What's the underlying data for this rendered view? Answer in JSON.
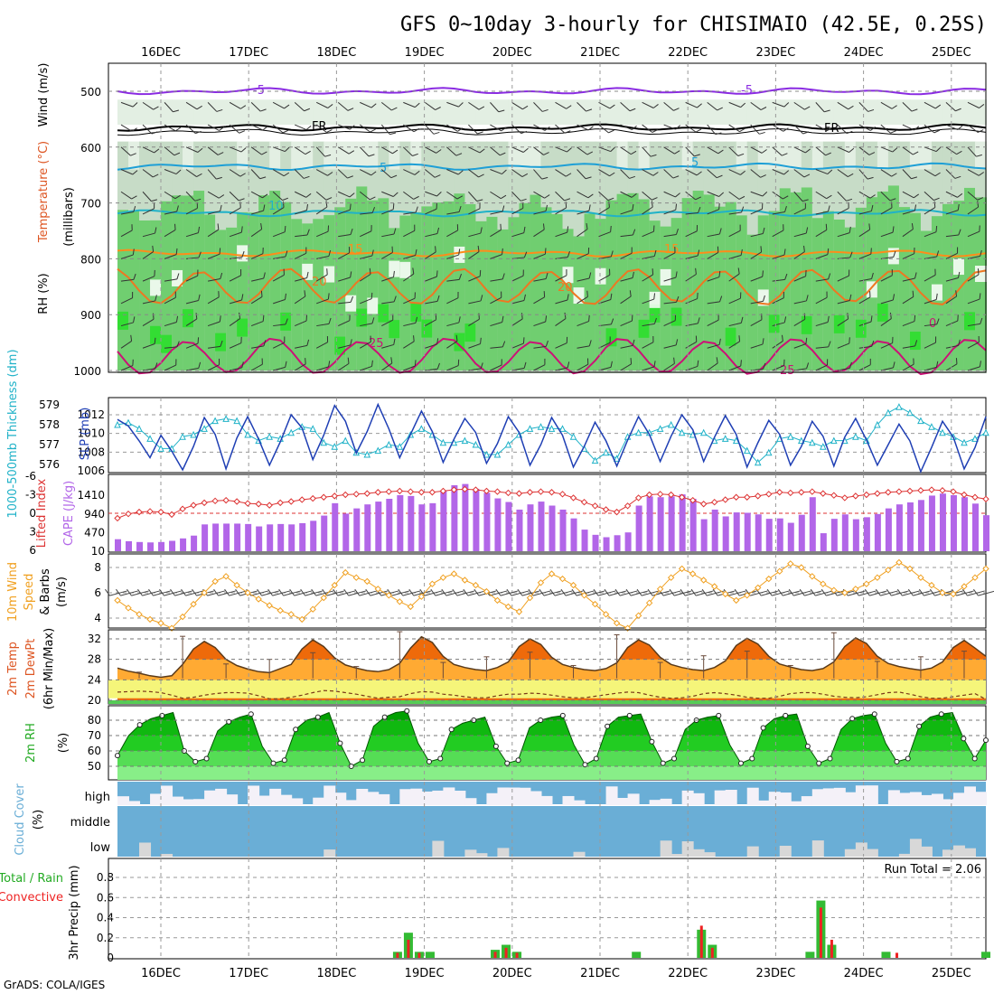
{
  "chart_data": {
    "type": "meteogram",
    "title": "GFS 0~10day 3-hourly for CHISIMAIO (42.5E, 0.25S)",
    "credit": "GrADS: COLA/IGES",
    "dates": [
      "16DEC",
      "17DEC",
      "18DEC",
      "19DEC",
      "20DEC",
      "21DEC",
      "22DEC",
      "23DEC",
      "24DEC",
      "25DEC"
    ],
    "colors": {
      "rh_light": "#e3efe3",
      "rh_mid": "#c7dcc7",
      "rh_green": "#66cc66",
      "rh_bright": "#33dd33",
      "purple": "#8a2be2",
      "fr": "#000000",
      "cyan": "#1e9fd6",
      "teal": "#20b2c8",
      "orange": "#ff8c1a",
      "orange_dark": "#ee7722",
      "magenta": "#cc1177",
      "blue": "#1f3fb4",
      "cape": "#b266e8",
      "li": "#dd3333",
      "wind_orange": "#f0a020",
      "temp_dark": "#ee6a0a",
      "temp_mid": "#ffaa33",
      "dew": "#f5f57a",
      "green_grass": "#55cc55",
      "cloud_blue": "#6aaed6",
      "cloud_white": "#f4f1f8",
      "cloud_gray": "#d8d8d8",
      "bar_green": "#33bb33",
      "bar_red": "#ee2222"
    },
    "panels": [
      {
        "id": "upper_air",
        "ylabel": "(millibars)",
        "legend": [
          "RH (%)",
          "Temperature (°C)",
          "Wind (m/s)"
        ],
        "yticks": [
          "500",
          "600",
          "700",
          "800",
          "900",
          "1000"
        ],
        "isotherms": [
          {
            "label": "-5",
            "level_mb": 500,
            "color": "purple"
          },
          {
            "label": "FR",
            "level_mb": 565,
            "color": "fr"
          },
          {
            "label": "5",
            "level_mb": 635,
            "color": "cyan"
          },
          {
            "label": "10",
            "level_mb": 718,
            "color": "teal"
          },
          {
            "label": "15",
            "level_mb": 790,
            "color": "orange"
          },
          {
            "label": "20",
            "level_mb": 850,
            "color": "orange_dark"
          },
          {
            "label": "25",
            "level_mb": 975,
            "color": "magenta"
          }
        ],
        "contour_labels": [
          "-5",
          "-5",
          "FR",
          "FR",
          "5",
          "5",
          "10",
          "15",
          "15",
          "20",
          "20",
          "25",
          "25",
          "0"
        ]
      },
      {
        "id": "slp_thickness",
        "ylabel_left": "1000-500mb Thickness (dm)",
        "ylabel_right": "SLP (mb)",
        "thickness_ticks": [
          "579",
          "578",
          "577",
          "576"
        ],
        "slp_ticks": [
          "1012",
          "1010",
          "1008",
          "1006"
        ],
        "slp_mb": [
          1011.5,
          1010.8,
          1009.2,
          1007.4,
          1009.8,
          1008.1,
          1006.1,
          1008.6,
          1011.7,
          1009.9,
          1006.2,
          1009.5,
          1011.8,
          1009.4,
          1006.6,
          1009.1,
          1012.0,
          1010.6,
          1007.2,
          1009.8,
          1013.0,
          1011.3,
          1007.9,
          1010.2,
          1013.1,
          1010.5,
          1007.4,
          1009.9,
          1012.4,
          1010.2,
          1006.9,
          1009.4,
          1011.6,
          1010.1,
          1006.8,
          1008.9,
          1011.8,
          1010.1,
          1006.6,
          1008.8,
          1011.7,
          1009.8,
          1006.4,
          1008.6,
          1011.2,
          1009.2,
          1006.5,
          1009.3,
          1011.8,
          1009.9,
          1007.0,
          1009.7,
          1012.0,
          1010.4,
          1007.0,
          1009.6,
          1011.9,
          1009.9,
          1006.4,
          1009.0,
          1011.4,
          1009.9,
          1006.6,
          1008.6,
          1011.3,
          1009.7,
          1006.5,
          1009.6,
          1011.6,
          1009.3,
          1006.6,
          1008.8,
          1011.0,
          1009.2,
          1005.9,
          1008.5,
          1011.3,
          1009.6,
          1006.2,
          1008.5,
          1011.8
        ],
        "thickness_dm": [
          578.0,
          578.1,
          577.8,
          577.3,
          576.8,
          576.8,
          577.4,
          577.5,
          577.8,
          578.2,
          578.3,
          578.2,
          577.5,
          577.2,
          577.4,
          577.3,
          577.6,
          577.9,
          577.8,
          577.1,
          576.9,
          577.2,
          576.6,
          576.5,
          576.7,
          577.0,
          576.9,
          577.5,
          577.8,
          577.5,
          577.1,
          577.1,
          577.2,
          577.0,
          576.5,
          576.5,
          577.0,
          577.5,
          577.8,
          577.9,
          577.8,
          577.8,
          577.4,
          576.8,
          576.2,
          576.6,
          576.3,
          577.4,
          577.6,
          577.6,
          577.8,
          578.0,
          577.6,
          577.5,
          577.6,
          577.2,
          577.3,
          577.2,
          576.7,
          576.1,
          576.6,
          577.3,
          577.4,
          577.2,
          577.1,
          576.9,
          577.2,
          577.2,
          577.4,
          577.2,
          578.0,
          578.6,
          578.9,
          578.6,
          578.2,
          577.9,
          577.6,
          577.4,
          577.1,
          577.3,
          577.6
        ]
      },
      {
        "id": "cape_li",
        "ylabel_left": "Lifted Index",
        "ylabel_right": "CAPE (J/kg)",
        "li_ticks": [
          "-6",
          "-3",
          "0",
          "3",
          "6"
        ],
        "cape_ticks": [
          "1410",
          "940",
          "470",
          "10"
        ],
        "cape": [
          310,
          260,
          240,
          230,
          240,
          270,
          330,
          400,
          680,
          700,
          700,
          700,
          690,
          630,
          680,
          690,
          680,
          710,
          770,
          900,
          1210,
          950,
          1080,
          1180,
          1250,
          1320,
          1410,
          1390,
          1180,
          1210,
          1520,
          1660,
          1690,
          1570,
          1470,
          1330,
          1240,
          1050,
          1180,
          1250,
          1150,
          1050,
          830,
          550,
          420,
          360,
          410,
          480,
          1150,
          1380,
          1360,
          1380,
          1430,
          1320,
          810,
          1050,
          880,
          980,
          970,
          930,
          820,
          830,
          720,
          920,
          1360,
          460,
          820,
          930,
          810,
          860,
          940,
          1080,
          1180,
          1230,
          1290,
          1400,
          1450,
          1410,
          1360,
          1200,
          910
        ],
        "lifted_index": [
          0.8,
          0.1,
          -0.2,
          -0.3,
          -0.2,
          0.2,
          -0.7,
          -1.3,
          -1.7,
          -2.0,
          -2.1,
          -1.9,
          -1.6,
          -1.5,
          -1.3,
          -1.7,
          -1.9,
          -2.2,
          -2.4,
          -2.6,
          -2.8,
          -3.0,
          -3.1,
          -3.2,
          -3.4,
          -3.5,
          -3.6,
          -3.5,
          -3.4,
          -3.4,
          -3.6,
          -3.8,
          -3.9,
          -3.8,
          -3.6,
          -3.5,
          -3.3,
          -3.2,
          -3.4,
          -3.5,
          -3.4,
          -3.1,
          -2.5,
          -1.8,
          -1.2,
          -0.6,
          -0.2,
          -1.2,
          -2.5,
          -3.0,
          -3.1,
          -3.0,
          -2.6,
          -2.1,
          -1.5,
          -1.8,
          -2.2,
          -2.6,
          -2.6,
          -2.8,
          -3.1,
          -3.4,
          -3.3,
          -3.4,
          -3.5,
          -3.2,
          -2.9,
          -2.5,
          -2.8,
          -3.0,
          -3.2,
          -3.4,
          -3.5,
          -3.6,
          -3.7,
          -3.8,
          -3.7,
          -3.5,
          -3.0,
          -2.6,
          -2.3
        ]
      },
      {
        "id": "wind10m",
        "ylabel": [
          "10m Wind",
          "Speed",
          "& Barbs",
          "(m/s)"
        ],
        "yticks": [
          "8",
          "6",
          "4"
        ],
        "speed": [
          5.4,
          4.8,
          4.3,
          3.9,
          3.6,
          3.2,
          4.1,
          5.1,
          6.0,
          6.9,
          7.3,
          6.6,
          6.0,
          5.5,
          5.0,
          4.6,
          4.3,
          3.9,
          4.7,
          5.6,
          6.6,
          7.6,
          7.2,
          6.9,
          6.3,
          5.8,
          5.3,
          4.9,
          5.7,
          6.7,
          7.2,
          7.5,
          7.0,
          6.6,
          6.1,
          5.4,
          4.9,
          4.5,
          5.6,
          6.8,
          7.5,
          7.1,
          6.6,
          5.8,
          5.1,
          4.3,
          3.6,
          3.2,
          4.2,
          5.2,
          6.3,
          7.2,
          7.9,
          7.5,
          7.0,
          6.5,
          5.9,
          5.4,
          5.8,
          6.4,
          7.1,
          7.7,
          8.3,
          8.0,
          7.3,
          6.7,
          6.2,
          6.0,
          6.3,
          6.7,
          7.2,
          7.8,
          8.4,
          7.9,
          7.2,
          6.6,
          6.0,
          5.9,
          6.5,
          7.2,
          7.9
        ]
      },
      {
        "id": "temp2m",
        "ylabel": [
          "2m Temp",
          "2m DewPt",
          "(6hr Min/Max)"
        ],
        "yticks": [
          "32",
          "28",
          "24",
          "20"
        ],
        "temp": [
          26.3,
          25.7,
          25.3,
          24.8,
          24.5,
          24.8,
          27.0,
          30.0,
          31.5,
          30.3,
          28.0,
          26.8,
          26.1,
          25.6,
          25.4,
          26.2,
          27.0,
          30.0,
          31.8,
          30.5,
          28.3,
          26.9,
          26.3,
          25.8,
          25.6,
          26.0,
          27.2,
          30.2,
          32.4,
          31.3,
          28.6,
          27.0,
          26.4,
          26.0,
          25.8,
          26.4,
          27.5,
          30.5,
          32.0,
          30.9,
          28.4,
          27.0,
          26.4,
          26.0,
          25.8,
          26.2,
          27.3,
          30.3,
          31.8,
          30.8,
          28.4,
          27.0,
          26.4,
          26.0,
          25.8,
          26.4,
          27.7,
          30.7,
          32.1,
          31.0,
          28.6,
          27.1,
          26.5,
          26.0,
          25.8,
          26.2,
          27.5,
          30.5,
          32.2,
          31.1,
          28.6,
          27.2,
          26.6,
          26.2,
          25.9,
          26.3,
          27.5,
          30.3,
          31.7,
          30.2,
          28.6
        ],
        "dewpt": [
          21.6,
          21.7,
          21.8,
          21.7,
          21.5,
          21.0,
          20.4,
          20.6,
          21.0,
          21.3,
          21.5,
          21.5,
          21.4,
          20.9,
          20.3,
          20.3,
          20.6,
          21.0,
          21.5,
          21.9,
          21.8,
          21.5,
          21.2,
          20.8,
          20.4,
          20.6,
          20.7,
          21.3,
          21.7,
          21.6,
          21.2,
          21.0,
          20.7,
          20.5,
          20.5,
          20.9,
          21.2,
          21.2,
          21.4,
          21.3,
          21.0,
          20.7,
          20.5,
          20.5,
          20.8,
          21.1,
          21.4,
          21.6,
          21.5,
          21.0,
          20.6,
          20.4,
          20.5,
          20.8,
          21.3,
          21.5,
          21.3,
          21.0,
          20.6,
          20.4,
          20.4,
          20.8,
          21.3,
          21.5,
          21.5,
          21.2,
          20.8,
          20.6,
          20.5,
          20.7,
          21.1,
          21.5,
          21.6,
          21.2,
          20.7,
          20.4,
          20.4,
          20.7,
          21.0,
          21.3,
          20.2
        ]
      },
      {
        "id": "rh2m",
        "ylabel": [
          "2m RH",
          "(%)"
        ],
        "yticks": [
          "80",
          "70",
          "60",
          "50"
        ],
        "rh": [
          57,
          70,
          77,
          81,
          83,
          85,
          60,
          53,
          55,
          73,
          79,
          82,
          84,
          63,
          52,
          54,
          74,
          80,
          82,
          85,
          65,
          50,
          54,
          76,
          82,
          85,
          86,
          65,
          53,
          55,
          74,
          78,
          80,
          82,
          63,
          52,
          54,
          75,
          80,
          82,
          83,
          64,
          51,
          55,
          76,
          82,
          83,
          84,
          66,
          52,
          55,
          74,
          80,
          82,
          83,
          64,
          52,
          55,
          75,
          81,
          83,
          84,
          63,
          52,
          55,
          74,
          81,
          83,
          84,
          65,
          53,
          55,
          76,
          82,
          84,
          85,
          68,
          55,
          67
        ]
      },
      {
        "id": "cloud",
        "ylabel": [
          "Cloud Cover",
          "(%)"
        ],
        "rows": [
          "high",
          "middle",
          "low"
        ]
      },
      {
        "id": "precip",
        "ylabel": [
          "Total / Rain",
          "Convective",
          "3hr Precip (mm)"
        ],
        "yticks": [
          "0.8",
          "0.6",
          "0.4",
          "0.2",
          "0"
        ],
        "run_total": "Run Total = 2.06",
        "bars": [
          {
            "t": 25.8,
            "total": 0.06,
            "conv": 0.05
          },
          {
            "t": 26.8,
            "total": 0.25,
            "conv": 0.18
          },
          {
            "t": 27.8,
            "total": 0.06,
            "conv": 0.05
          },
          {
            "t": 28.8,
            "total": 0.06,
            "conv": 0.0
          },
          {
            "t": 34.8,
            "total": 0.08,
            "conv": 0.06
          },
          {
            "t": 35.8,
            "total": 0.13,
            "conv": 0.1
          },
          {
            "t": 36.8,
            "total": 0.06,
            "conv": 0.05
          },
          {
            "t": 47.8,
            "total": 0.06,
            "conv": 0.0
          },
          {
            "t": 53.8,
            "total": 0.28,
            "conv": 0.32
          },
          {
            "t": 54.8,
            "total": 0.13,
            "conv": 0.1
          },
          {
            "t": 63.8,
            "total": 0.06,
            "conv": 0.0
          },
          {
            "t": 64.8,
            "total": 0.57,
            "conv": 0.5
          },
          {
            "t": 65.8,
            "total": 0.13,
            "conv": 0.18
          },
          {
            "t": 70.8,
            "total": 0.06,
            "conv": 0.0
          },
          {
            "t": 71.8,
            "total": 0.0,
            "conv": 0.05
          },
          {
            "t": 80.0,
            "total": 0.06,
            "conv": 0.0
          }
        ]
      }
    ]
  }
}
